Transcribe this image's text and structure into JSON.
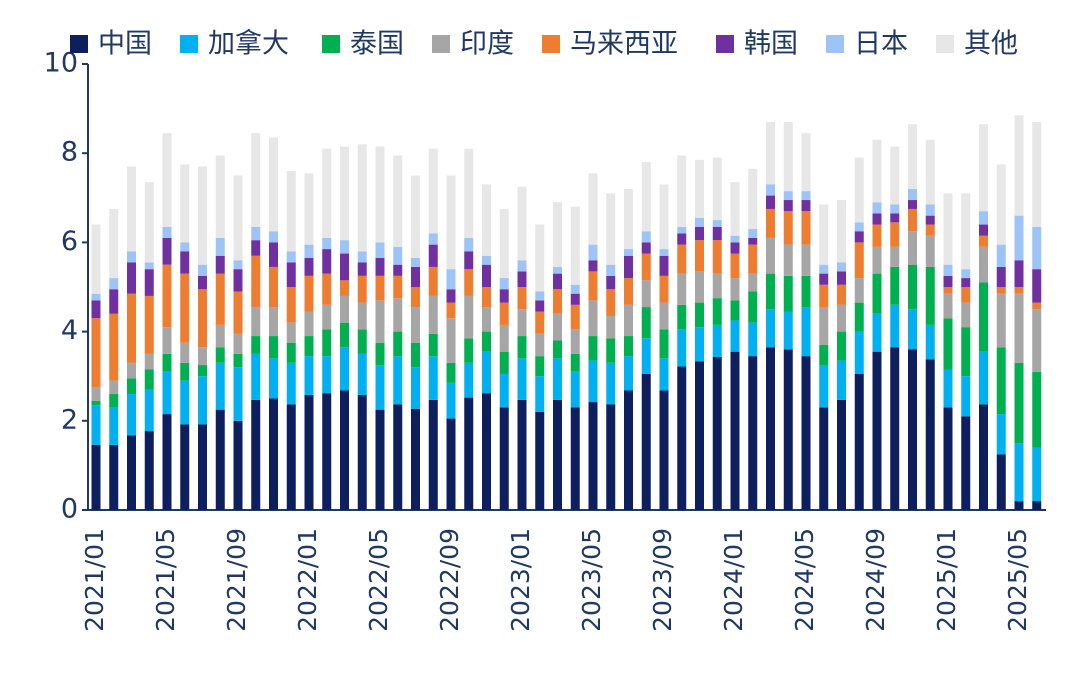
{
  "chart_data": {
    "type": "stacked_bar",
    "categories": [
      "2021/01",
      null,
      null,
      null,
      "2021/05",
      null,
      null,
      null,
      "2021/09",
      null,
      null,
      null,
      "2022/01",
      null,
      null,
      null,
      "2022/05",
      null,
      null,
      null,
      "2022/09",
      null,
      null,
      null,
      "2023/01",
      null,
      null,
      null,
      "2023/05",
      null,
      null,
      null,
      "2023/09",
      null,
      null,
      null,
      "2024/01",
      null,
      null,
      null,
      "2024/05",
      null,
      null,
      null,
      "2024/09",
      null,
      null,
      null,
      "2025/01",
      null,
      null,
      null,
      "2025/05",
      null
    ],
    "series": [
      {
        "name": "中国",
        "color": "#0d1f5c",
        "values": [
          1.46,
          1.46,
          1.67,
          1.77,
          2.15,
          1.92,
          1.92,
          2.25,
          2.0,
          2.47,
          2.5,
          2.37,
          2.58,
          2.62,
          2.68,
          2.58,
          2.25,
          2.37,
          2.27,
          2.47,
          2.05,
          2.52,
          2.62,
          2.3,
          2.47,
          2.2,
          2.47,
          2.3,
          2.42,
          2.37,
          2.68,
          3.05,
          2.68,
          3.22,
          3.33,
          3.43,
          3.55,
          3.45,
          3.65,
          3.6,
          3.45,
          2.3,
          2.47,
          3.05,
          3.55,
          3.65,
          3.6,
          3.38,
          2.3,
          2.1,
          2.37,
          1.25,
          0.2,
          0.2
        ]
      },
      {
        "name": "加拿大",
        "color": "#00b0f0",
        "values": [
          0.89,
          0.84,
          0.93,
          0.93,
          0.95,
          0.98,
          1.08,
          1.05,
          1.2,
          1.03,
          0.9,
          0.93,
          0.87,
          0.83,
          0.97,
          0.92,
          1.0,
          1.08,
          0.93,
          0.98,
          0.8,
          0.78,
          0.93,
          0.75,
          0.93,
          0.8,
          0.93,
          0.8,
          0.93,
          0.93,
          0.77,
          0.8,
          0.72,
          0.83,
          0.77,
          0.72,
          0.7,
          0.75,
          0.85,
          0.85,
          1.1,
          0.95,
          0.88,
          0.95,
          0.85,
          0.95,
          0.9,
          0.77,
          0.85,
          0.9,
          1.18,
          0.9,
          1.3,
          1.2
        ]
      },
      {
        "name": "泰国",
        "color": "#00b050",
        "values": [
          0.1,
          0.3,
          0.35,
          0.45,
          0.4,
          0.4,
          0.25,
          0.35,
          0.3,
          0.4,
          0.5,
          0.45,
          0.45,
          0.6,
          0.55,
          0.55,
          0.5,
          0.55,
          0.55,
          0.5,
          0.45,
          0.55,
          0.45,
          0.5,
          0.5,
          0.45,
          0.4,
          0.4,
          0.55,
          0.55,
          0.45,
          0.7,
          0.65,
          0.55,
          0.55,
          0.6,
          0.45,
          0.7,
          0.8,
          0.8,
          0.7,
          0.45,
          0.65,
          0.65,
          0.9,
          0.85,
          1.0,
          1.3,
          1.15,
          1.1,
          1.55,
          1.5,
          1.8,
          1.7
        ]
      },
      {
        "name": "印度",
        "color": "#a6a6a6",
        "values": [
          0.3,
          0.3,
          0.35,
          0.35,
          0.6,
          0.45,
          0.4,
          0.5,
          0.45,
          0.65,
          0.65,
          0.45,
          0.55,
          0.55,
          0.6,
          0.6,
          0.95,
          0.75,
          0.8,
          0.85,
          1.0,
          0.95,
          0.55,
          0.6,
          0.6,
          0.5,
          0.6,
          0.55,
          0.8,
          0.5,
          0.7,
          0.6,
          0.6,
          0.7,
          0.7,
          0.55,
          0.5,
          0.4,
          0.8,
          0.7,
          0.7,
          0.85,
          0.6,
          0.55,
          0.6,
          0.45,
          0.75,
          0.7,
          0.55,
          0.55,
          0.8,
          1.2,
          1.55,
          1.4
        ]
      },
      {
        "name": "马来西亚",
        "color": "#ed7d31",
        "values": [
          1.55,
          1.5,
          1.55,
          1.3,
          1.4,
          1.55,
          1.3,
          1.15,
          0.95,
          1.15,
          0.9,
          0.8,
          0.8,
          0.7,
          0.35,
          0.6,
          0.55,
          0.5,
          0.45,
          0.65,
          0.35,
          0.6,
          0.45,
          0.5,
          0.5,
          0.5,
          0.55,
          0.55,
          0.65,
          0.6,
          0.6,
          0.6,
          0.6,
          0.65,
          0.7,
          0.75,
          0.55,
          0.65,
          0.65,
          0.75,
          0.75,
          0.5,
          0.45,
          0.8,
          0.5,
          0.55,
          0.5,
          0.25,
          0.15,
          0.35,
          0.25,
          0.15,
          0.15,
          0.15
        ]
      },
      {
        "name": "韩国",
        "color": "#7030a0",
        "values": [
          0.4,
          0.55,
          0.7,
          0.6,
          0.6,
          0.5,
          0.3,
          0.4,
          0.5,
          0.35,
          0.55,
          0.55,
          0.4,
          0.55,
          0.6,
          0.3,
          0.4,
          0.25,
          0.45,
          0.5,
          0.3,
          0.4,
          0.5,
          0.3,
          0.35,
          0.25,
          0.35,
          0.25,
          0.25,
          0.3,
          0.5,
          0.25,
          0.45,
          0.25,
          0.3,
          0.3,
          0.25,
          0.15,
          0.3,
          0.25,
          0.25,
          0.25,
          0.3,
          0.25,
          0.25,
          0.2,
          0.2,
          0.2,
          0.25,
          0.2,
          0.25,
          0.45,
          0.6,
          0.75
        ]
      },
      {
        "name": "日本",
        "color": "#9dc3f7",
        "values": [
          0.15,
          0.25,
          0.25,
          0.15,
          0.25,
          0.2,
          0.25,
          0.4,
          0.2,
          0.3,
          0.25,
          0.25,
          0.3,
          0.25,
          0.3,
          0.25,
          0.35,
          0.4,
          0.2,
          0.25,
          0.45,
          0.3,
          0.2,
          0.25,
          0.25,
          0.2,
          0.15,
          0.2,
          0.35,
          0.25,
          0.15,
          0.25,
          0.15,
          0.15,
          0.2,
          0.15,
          0.15,
          0.2,
          0.25,
          0.2,
          0.2,
          0.2,
          0.2,
          0.2,
          0.25,
          0.2,
          0.25,
          0.25,
          0.25,
          0.2,
          0.3,
          0.5,
          1.0,
          0.95
        ]
      },
      {
        "name": "其他",
        "color": "#e7e7e7",
        "values": [
          1.55,
          1.55,
          1.9,
          1.8,
          2.1,
          1.75,
          2.2,
          1.85,
          1.9,
          2.1,
          2.1,
          1.8,
          1.6,
          2.0,
          2.1,
          2.4,
          2.15,
          2.05,
          1.85,
          1.9,
          2.1,
          2.0,
          1.6,
          1.55,
          1.65,
          1.5,
          1.45,
          1.75,
          1.6,
          1.6,
          1.35,
          1.55,
          1.45,
          1.6,
          1.3,
          1.4,
          1.2,
          1.35,
          1.4,
          1.55,
          1.3,
          1.35,
          1.4,
          1.45,
          1.4,
          1.3,
          1.45,
          1.45,
          1.6,
          1.7,
          1.95,
          1.8,
          2.25,
          2.35
        ]
      }
    ],
    "ylim": [
      0,
      10
    ],
    "yticks": [
      0,
      2,
      4,
      6,
      8,
      10
    ],
    "legend": "top"
  }
}
